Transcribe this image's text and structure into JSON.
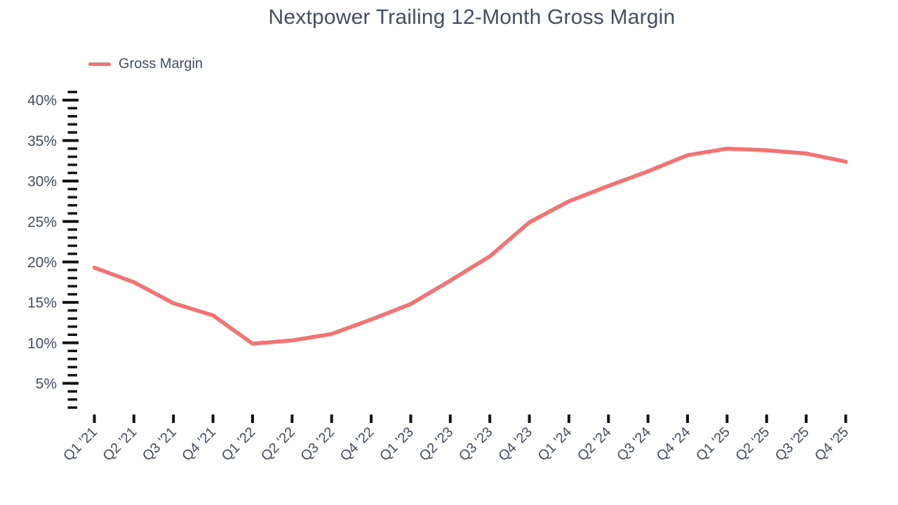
{
  "chart_data": {
    "type": "line",
    "title": "Nextpower Trailing 12-Month Gross Margin",
    "xlabel": "",
    "ylabel": "",
    "categories": [
      "Q1 '21",
      "Q2 '21",
      "Q3 '21",
      "Q4 '21",
      "Q1 '22",
      "Q2 '22",
      "Q3 '22",
      "Q4 '22",
      "Q1 '23",
      "Q2 '23",
      "Q3 '23",
      "Q4 '23",
      "Q1 '24",
      "Q2 '24",
      "Q3 '24",
      "Q4 '24",
      "Q1 '25",
      "Q2 '25",
      "Q3 '25",
      "Q4 '25"
    ],
    "series": [
      {
        "name": "Gross Margin",
        "values": [
          19.3,
          17.5,
          14.9,
          13.4,
          9.9,
          10.3,
          11.1,
          12.9,
          14.8,
          17.7,
          20.7,
          24.9,
          27.5,
          29.4,
          31.2,
          33.2,
          34.0,
          33.8,
          33.4,
          32.4
        ]
      }
    ],
    "y_axis": {
      "unit": "%",
      "major_ticks": [
        40,
        35,
        30,
        25,
        20,
        15,
        10,
        5
      ],
      "major_tick_labels": [
        "40%",
        "35%",
        "30%",
        "25%",
        "20%",
        "15%",
        "10%",
        "5%"
      ],
      "minor_tick_step": 1,
      "range_top": 41,
      "range_bottom": 2
    },
    "legend": {
      "position": "top-left"
    },
    "grid": "off",
    "axis_lines": "off",
    "colors": {
      "line": "#F87171",
      "text": "#414F63",
      "tick": "#111111",
      "background": "#FFFFFF"
    }
  }
}
